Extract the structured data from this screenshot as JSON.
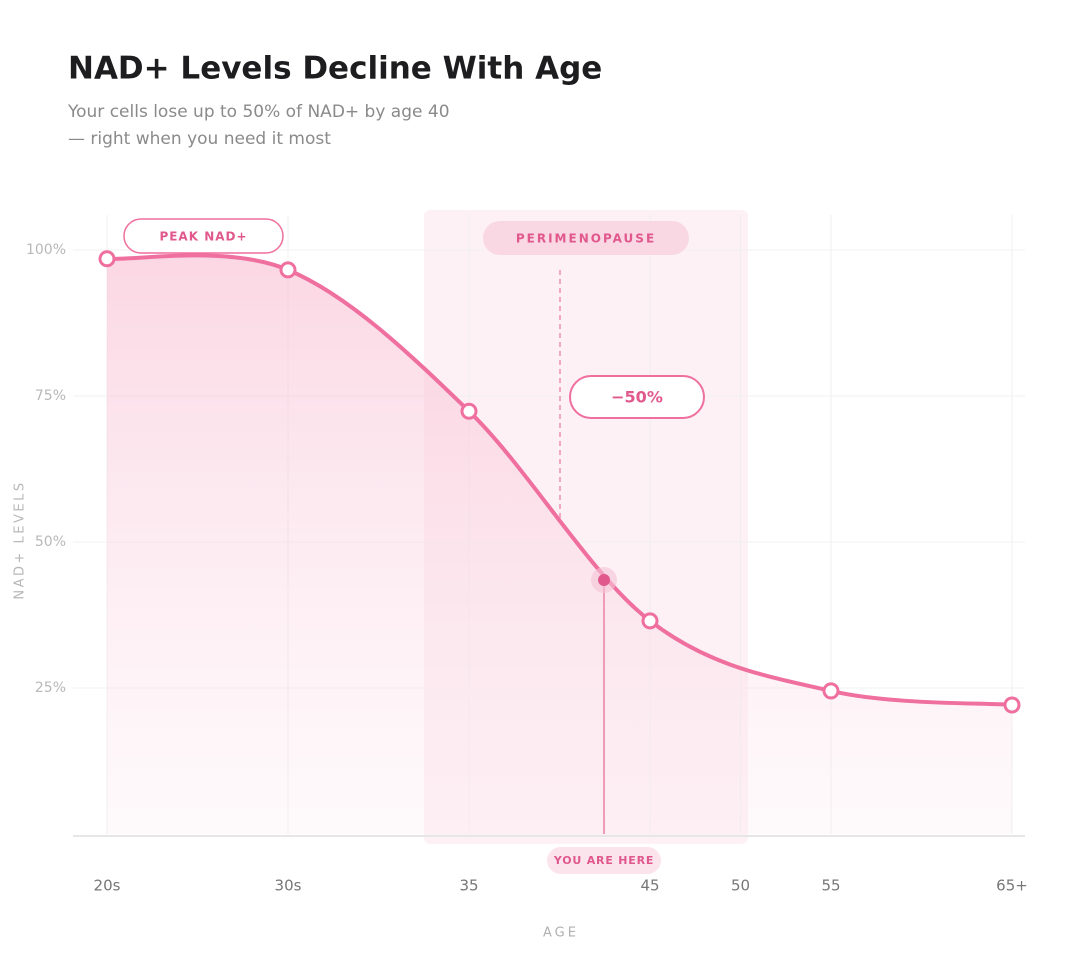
{
  "chart_data": {
    "type": "line",
    "title": "NAD+ Levels Decline With Age",
    "subtitle_lines": [
      "Your cells lose up to 50% of NAD+ by age 40",
      "— right when you need it most"
    ],
    "x_label": "AGE",
    "y_label": "NAD+ LEVELS",
    "categories": [
      "20s",
      "30s",
      "35",
      "45",
      "55",
      "65+"
    ],
    "x_extra_label": "50",
    "values": [
      98.5,
      96.6,
      72.4,
      36.5,
      24.5,
      22.1
    ],
    "color": "#ef6f9e",
    "ylim": [
      0,
      106
    ],
    "yticks": [
      {
        "value": 25,
        "label": "25%"
      },
      {
        "value": 50,
        "label": "50%"
      },
      {
        "value": 75,
        "label": "75%"
      },
      {
        "value": 100,
        "label": "100%"
      }
    ],
    "grid": true,
    "annotations": {
      "peak": "PEAK NAD+",
      "band": "PERIMENOPAUSE",
      "drop": "−50%"
    },
    "you_are_here": {
      "label": "YOU ARE HERE",
      "value": 43.5
    }
  }
}
